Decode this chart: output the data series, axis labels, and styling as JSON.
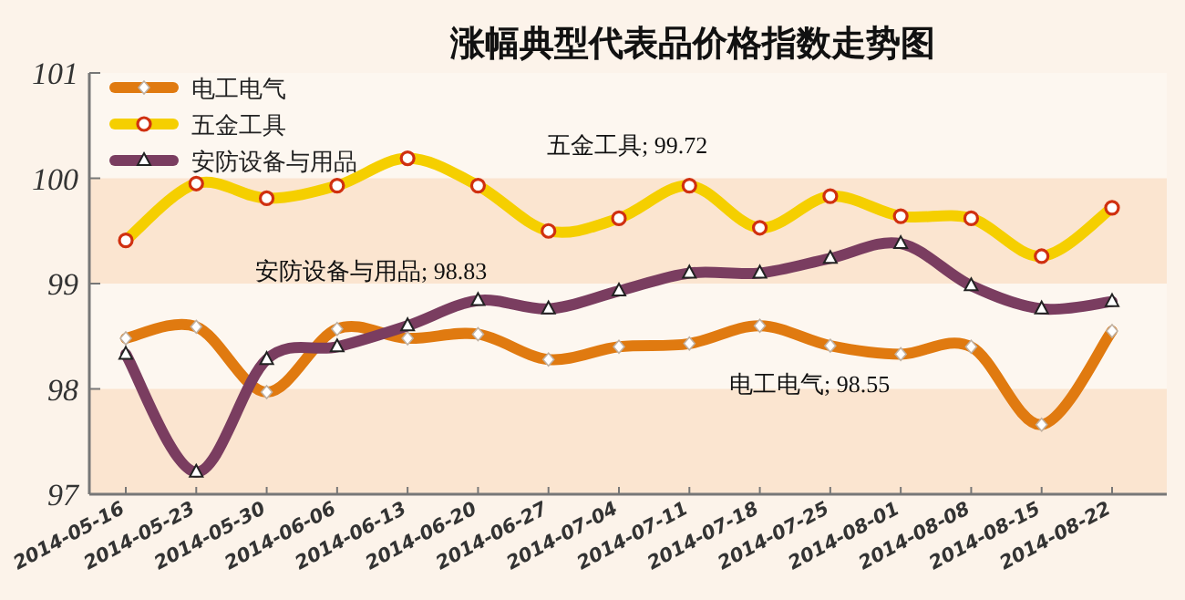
{
  "chart_data": {
    "type": "line",
    "title": "涨幅典型代表品价格指数走势图",
    "categories": [
      "2014-05-16",
      "2014-05-23",
      "2014-05-30",
      "2014-06-06",
      "2014-06-13",
      "2014-06-20",
      "2014-06-27",
      "2014-07-04",
      "2014-07-11",
      "2014-07-18",
      "2014-07-25",
      "2014-08-01",
      "2014-08-08",
      "2014-08-15",
      "2014-08-22"
    ],
    "series": [
      {
        "name": "电工电气",
        "color": "#e07a10",
        "marker": "diamond",
        "values": [
          98.48,
          98.59,
          97.97,
          98.57,
          98.48,
          98.52,
          98.28,
          98.4,
          98.43,
          98.6,
          98.41,
          98.33,
          98.4,
          97.66,
          98.55
        ]
      },
      {
        "name": "五金工具",
        "color": "#f5cf00",
        "marker": "circle",
        "values": [
          99.41,
          99.95,
          99.81,
          99.93,
          100.19,
          99.93,
          99.5,
          99.62,
          99.93,
          99.53,
          99.83,
          99.64,
          99.62,
          99.26,
          99.72
        ]
      },
      {
        "name": "安防设备与用品",
        "color": "#7a3d60",
        "marker": "triangle",
        "values": [
          98.33,
          97.21,
          98.28,
          98.4,
          98.6,
          98.84,
          98.76,
          98.93,
          99.1,
          99.1,
          99.24,
          99.38,
          98.98,
          98.76,
          98.83
        ]
      }
    ],
    "ylim": [
      97,
      101
    ],
    "yticks": [
      97,
      98,
      99,
      100,
      101
    ],
    "grid": false,
    "legend": "top left",
    "bands": [
      {
        "axis": "y",
        "from": 97,
        "to": 98,
        "color": "#fbe5d0"
      },
      {
        "axis": "y",
        "from": 99,
        "to": 100,
        "color": "#fbe5d0"
      }
    ],
    "annotations": [
      "五金工具; 99.72",
      "安防设备与用品; 98.83",
      "电工电气; 98.55"
    ]
  }
}
